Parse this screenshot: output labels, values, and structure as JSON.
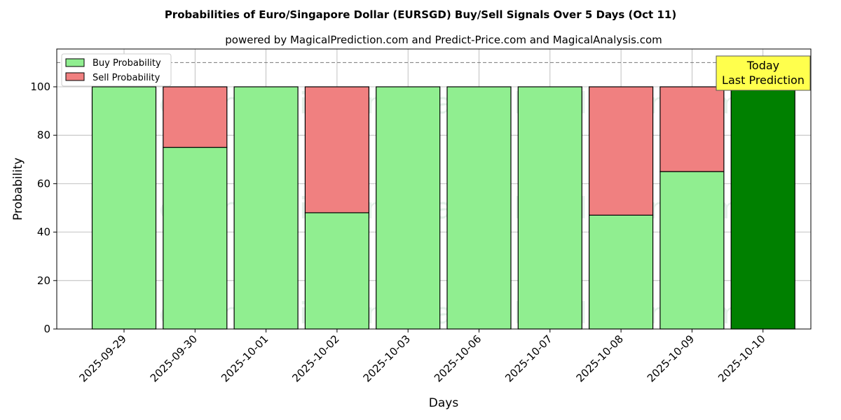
{
  "chart_data": {
    "type": "bar",
    "stacked": true,
    "title": "Probabilities of Euro/Singapore Dollar (EURSGD) Buy/Sell Signals Over 5 Days (Oct 11)",
    "subtitle": "powered by MagicalPrediction.com and Predict-Price.com and MagicalAnalysis.com",
    "xlabel": "Days",
    "ylabel": "Probability",
    "ylim": [
      0,
      115
    ],
    "yticks": [
      0,
      20,
      40,
      60,
      80,
      100
    ],
    "categories": [
      "2025-09-29",
      "2025-09-30",
      "2025-10-01",
      "2025-10-02",
      "2025-10-03",
      "2025-10-06",
      "2025-10-07",
      "2025-10-08",
      "2025-10-09",
      "2025-10-10"
    ],
    "series": [
      {
        "name": "Buy Probability",
        "color": "#90ee90",
        "values": [
          100,
          75,
          100,
          48,
          100,
          100,
          100,
          47,
          65,
          100
        ]
      },
      {
        "name": "Sell Probability",
        "color": "#f08080",
        "values": [
          0,
          25,
          0,
          52,
          0,
          0,
          0,
          53,
          35,
          0
        ]
      }
    ],
    "highlight_color": "#008000",
    "reference_line": 110,
    "annotation": {
      "line1": "Today",
      "line2": "Last Prediction"
    },
    "legend_position": "top-left",
    "grid": true,
    "watermarks": [
      "MagicalAnalysis.com",
      "MagicalPrediction.com"
    ]
  }
}
